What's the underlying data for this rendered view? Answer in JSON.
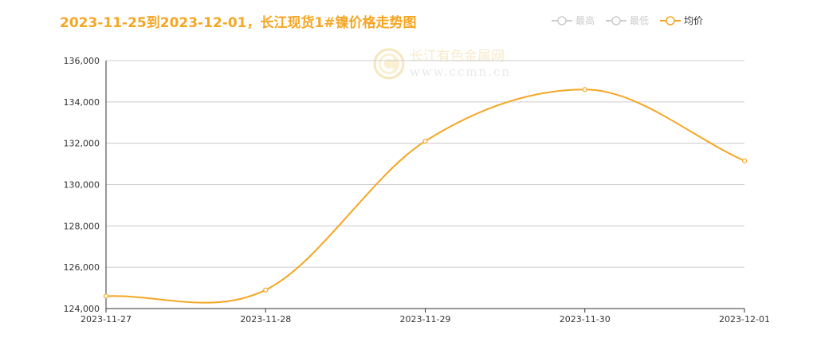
{
  "title": "2023-11-25到2023-12-01，长江现货1#镍价格走势图",
  "legend": [
    {
      "label": "最高",
      "active": false
    },
    {
      "label": "最低",
      "active": false
    },
    {
      "label": "均价",
      "active": true
    }
  ],
  "watermark": {
    "name": "长江有色金属网",
    "url": "www.ccmn.cn"
  },
  "colors": {
    "accent": "#f5a623",
    "grid": "#cccccc",
    "axis": "#333333",
    "inactive": "#cccccc"
  },
  "chart_data": {
    "type": "line",
    "title": "2023-11-25到2023-12-01，长江现货1#镍价格走势图",
    "categories": [
      "2023-11-27",
      "2023-11-28",
      "2023-11-29",
      "2023-11-30",
      "2023-12-01"
    ],
    "series": [
      {
        "name": "均价",
        "values": [
          124600,
          124900,
          132100,
          134600,
          131150
        ],
        "smooth": true
      }
    ],
    "ylim": [
      124000,
      136000
    ],
    "yticks": [
      124000,
      126000,
      128000,
      130000,
      132000,
      134000,
      136000
    ],
    "ytick_labels": [
      "124,000",
      "126,000",
      "128,000",
      "130,000",
      "132,000",
      "134,000",
      "136,000"
    ],
    "grid": true,
    "legend_position": "top-right"
  }
}
